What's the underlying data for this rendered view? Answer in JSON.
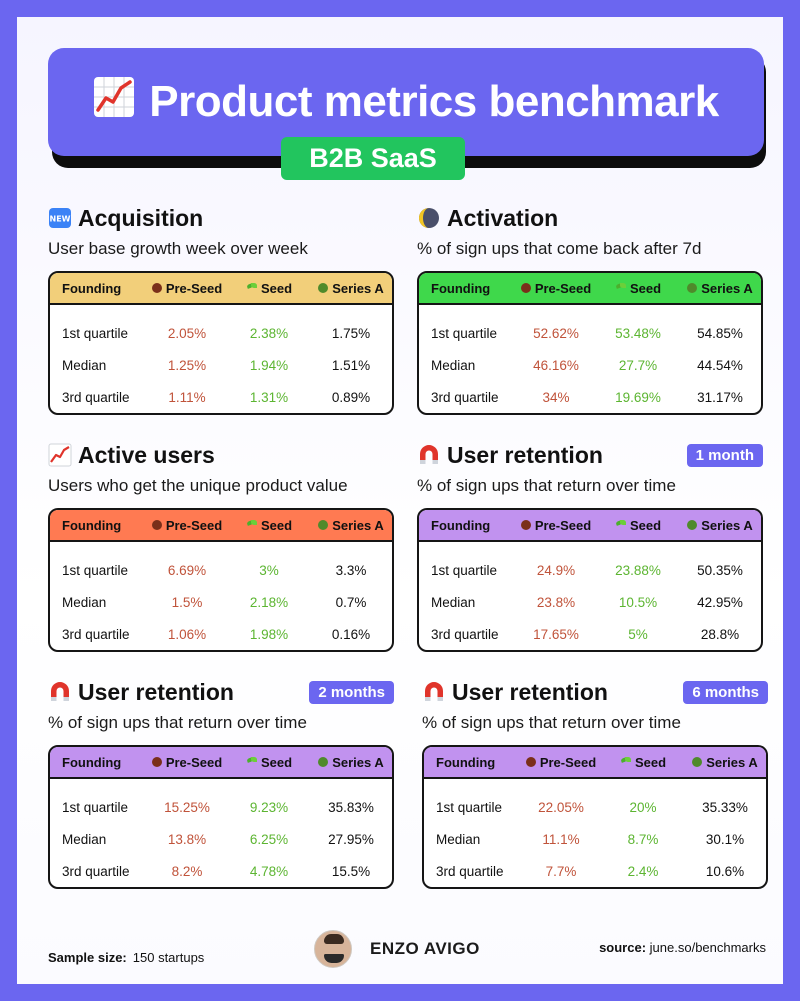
{
  "header": {
    "title": "Product metrics benchmark",
    "badge": "B2B SaaS",
    "title_icon": "chart-increasing-icon"
  },
  "columns": {
    "founding": "Founding",
    "preseed": "Pre-Seed",
    "seed": "Seed",
    "seriesa": "Series A"
  },
  "row_labels": [
    "1st quartile",
    "Median",
    "3rd quartile"
  ],
  "sections": [
    {
      "title": "Acquisition",
      "icon": "new-badge-icon",
      "subtitle": "User base growth week over week",
      "tag": "",
      "color": "#f2cf7a",
      "rows": [
        [
          "2.05%",
          "2.38%",
          "1.75%"
        ],
        [
          "1.25%",
          "1.94%",
          "1.51%"
        ],
        [
          "1.11%",
          "1.31%",
          "0.89%"
        ]
      ]
    },
    {
      "title": "Activation",
      "icon": "moon-icon",
      "subtitle": "% of sign ups that come back after 7d",
      "tag": "",
      "color": "#3fd84b",
      "rows": [
        [
          "52.62%",
          "53.48%",
          "54.85%"
        ],
        [
          "46.16%",
          "27.7%",
          "44.54%"
        ],
        [
          "34%",
          "19.69%",
          "31.17%"
        ]
      ]
    },
    {
      "title": "Active users",
      "icon": "chart-increasing-icon",
      "subtitle": "Users who get the unique product value",
      "tag": "",
      "color": "#ff7a52",
      "rows": [
        [
          "6.69%",
          "3%",
          "3.3%"
        ],
        [
          "1.5%",
          "2.18%",
          "0.7%"
        ],
        [
          "1.06%",
          "1.98%",
          "0.16%"
        ]
      ]
    },
    {
      "title": "User retention",
      "icon": "magnet-icon",
      "subtitle": "% of sign ups that return over time",
      "tag": "1 month",
      "color": "#c192ef",
      "rows": [
        [
          "24.9%",
          "23.88%",
          "50.35%"
        ],
        [
          "23.8%",
          "10.5%",
          "42.95%"
        ],
        [
          "17.65%",
          "5%",
          "28.8%"
        ]
      ]
    },
    {
      "title": "User retention",
      "icon": "magnet-icon",
      "subtitle": "% of sign ups that return over time",
      "tag": "2 months",
      "color": "#c192ef",
      "rows": [
        [
          "15.25%",
          "9.23%",
          "35.83%"
        ],
        [
          "13.8%",
          "6.25%",
          "27.95%"
        ],
        [
          "8.2%",
          "4.78%",
          "15.5%"
        ]
      ]
    },
    {
      "title": "User retention",
      "icon": "magnet-icon",
      "subtitle": "% of sign ups that return over time",
      "tag": "6 months",
      "color": "#c192ef",
      "rows": [
        [
          "22.05%",
          "20%",
          "35.33%"
        ],
        [
          "11.1%",
          "8.7%",
          "30.1%"
        ],
        [
          "7.7%",
          "2.4%",
          "10.6%"
        ]
      ]
    }
  ],
  "footer": {
    "sample_label": "Sample size:",
    "sample_value": "150 startups",
    "author": "ENZO AVIGO",
    "source_label": "source:",
    "source_value": "june.so/benchmarks"
  }
}
